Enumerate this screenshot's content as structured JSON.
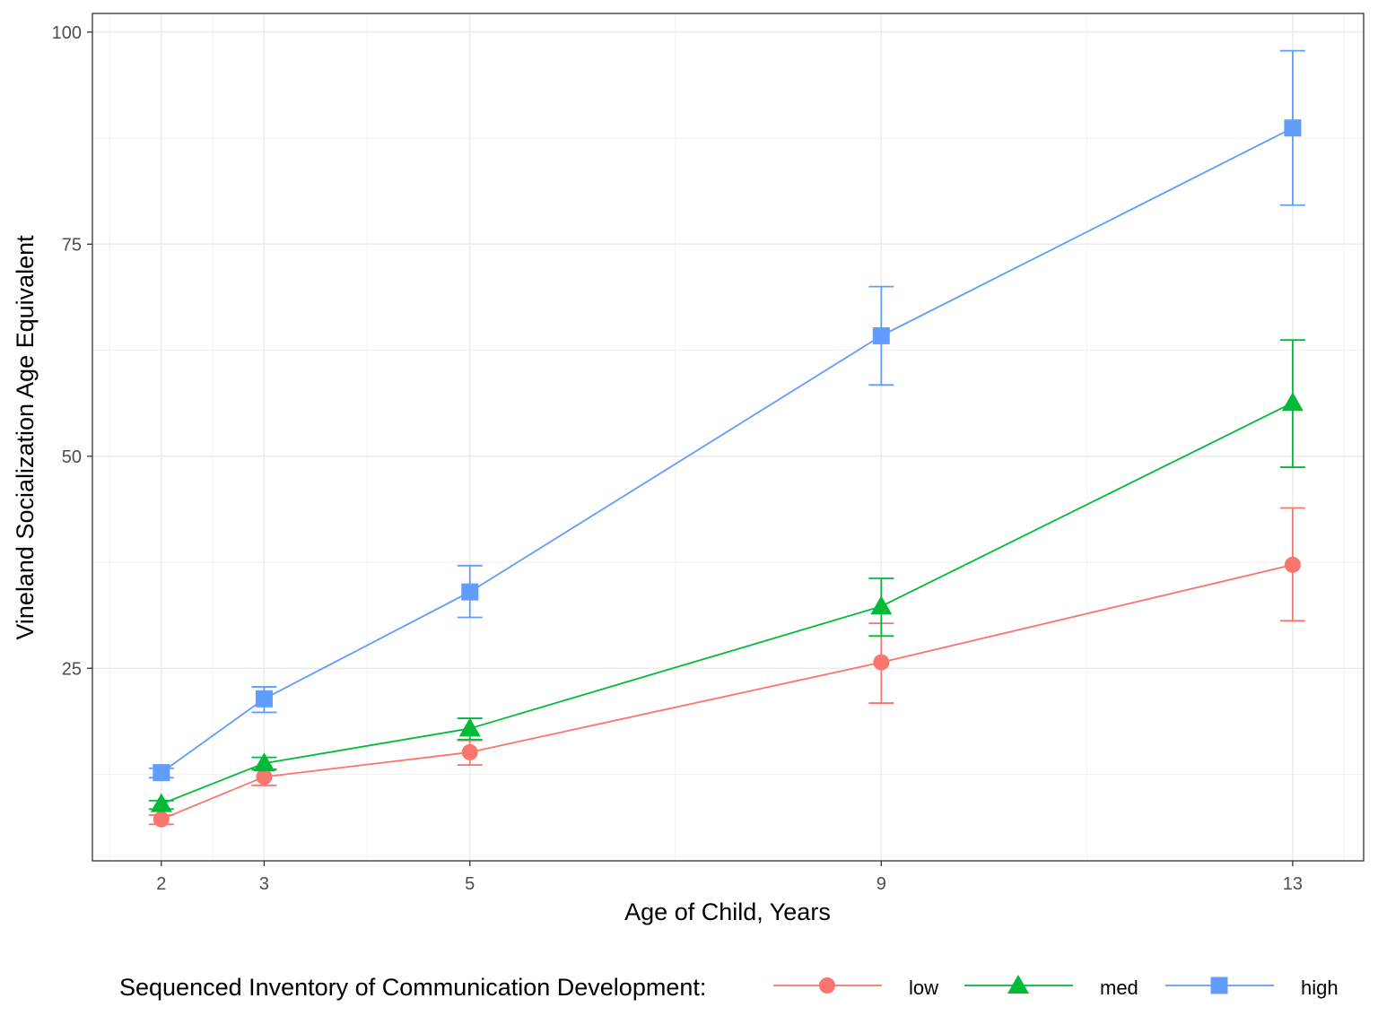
{
  "chart_data": {
    "type": "line",
    "title": "",
    "xlabel": "Age of Child, Years",
    "ylabel": "Vineland Socialization Age Equivalent",
    "x": [
      2,
      3,
      5,
      9,
      13
    ],
    "x_ticks": [
      "2",
      "3",
      "5",
      "9",
      "13"
    ],
    "y_ticks": [
      "25",
      "50",
      "75",
      "100"
    ],
    "xlim": [
      1.33,
      13.69
    ],
    "ylim": [
      2.3,
      102.2
    ],
    "grid": true,
    "legend_title": "Sequenced Inventory of Communication Development:",
    "legend_position": "bottom",
    "series": [
      {
        "name": "low",
        "color": "#F8766D",
        "marker": "circle",
        "values": [
          7.2,
          12.2,
          15.1,
          25.7,
          37.2
        ],
        "upper": [
          7.7,
          13.0,
          16.5,
          30.3,
          43.9
        ],
        "lower": [
          6.6,
          11.2,
          13.6,
          20.9,
          30.6
        ]
      },
      {
        "name": "med",
        "color": "#00BA38",
        "marker": "triangle",
        "values": [
          9.0,
          13.8,
          17.9,
          32.3,
          56.3
        ],
        "upper": [
          9.4,
          14.5,
          19.1,
          35.6,
          63.7
        ],
        "lower": [
          8.4,
          13.1,
          16.6,
          28.8,
          48.7
        ]
      },
      {
        "name": "high",
        "color": "#619CFF",
        "marker": "square",
        "values": [
          12.7,
          21.4,
          34.0,
          64.2,
          88.7
        ],
        "upper": [
          13.2,
          22.8,
          37.1,
          70.0,
          97.8
        ],
        "lower": [
          12.1,
          19.8,
          31.0,
          58.4,
          79.6
        ]
      }
    ]
  }
}
